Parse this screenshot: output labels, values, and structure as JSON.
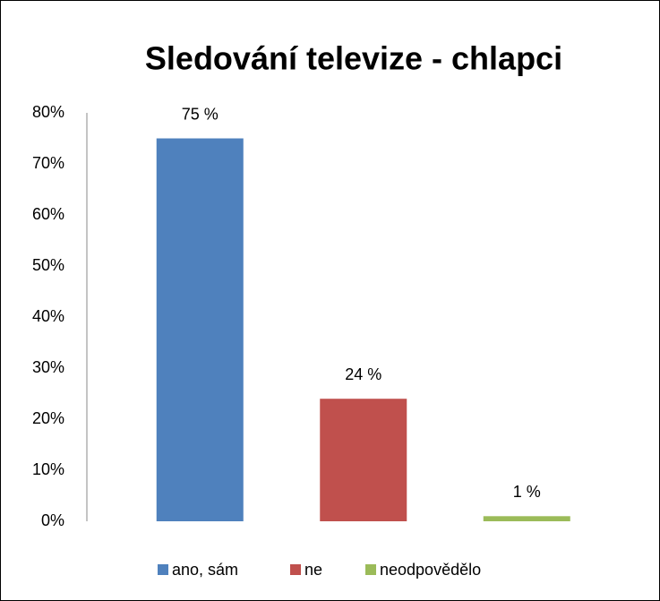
{
  "chart_data": {
    "type": "bar",
    "title": "Sledování televize - chlapci",
    "categories": [
      "ano, sám",
      "ne",
      "neodpovědělo"
    ],
    "values": [
      75,
      24,
      1
    ],
    "value_labels": [
      "75 %",
      "24 %",
      "1 %"
    ],
    "colors": [
      "#4f81bd",
      "#c0504d",
      "#9bbb59"
    ],
    "ylim": [
      0,
      80
    ],
    "yticks": [
      {
        "value": 0,
        "label": "0%"
      },
      {
        "value": 10,
        "label": "10%"
      },
      {
        "value": 20,
        "label": "20%"
      },
      {
        "value": 30,
        "label": "30%"
      },
      {
        "value": 40,
        "label": "40%"
      },
      {
        "value": 50,
        "label": "50%"
      },
      {
        "value": 60,
        "label": "60%"
      },
      {
        "value": 70,
        "label": "70%"
      },
      {
        "value": 80,
        "label": "80%"
      }
    ],
    "grid": false,
    "legend": "bottom"
  }
}
